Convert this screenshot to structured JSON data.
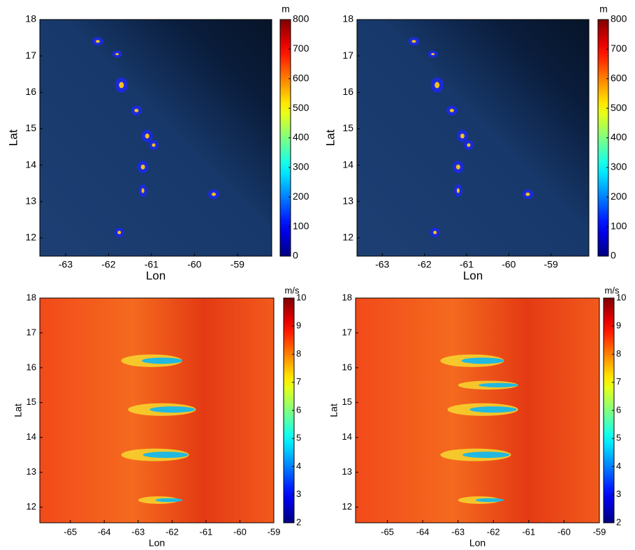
{
  "chart_data": [
    {
      "type": "heatmap",
      "colormap": "jet",
      "xlabel": "Lon",
      "ylabel": "Lat",
      "colorbar_label": "m",
      "xlim": [
        -63.6,
        -58.2
      ],
      "xticks": [
        -63,
        -62,
        -61,
        -60,
        -59
      ],
      "ylim": [
        11.5,
        18
      ],
      "yticks": [
        12,
        13,
        14,
        15,
        16,
        17,
        18
      ],
      "clim": [
        0,
        800
      ],
      "cticks": [
        0,
        100,
        200,
        300,
        400,
        500,
        600,
        700,
        800
      ]
    },
    {
      "type": "heatmap",
      "colormap": "jet",
      "xlabel": "Lon",
      "ylabel": "Lat",
      "colorbar_label": "m",
      "xlim": [
        -63.6,
        -58.1
      ],
      "xticks": [
        -63,
        -62,
        -61,
        -60,
        -59
      ],
      "ylim": [
        11.5,
        18
      ],
      "yticks": [
        12,
        13,
        14,
        15,
        16,
        17,
        18
      ],
      "clim": [
        0,
        800
      ],
      "cticks": [
        0,
        100,
        200,
        300,
        400,
        500,
        600,
        700,
        800
      ]
    },
    {
      "type": "heatmap",
      "colormap": "jet",
      "xlabel": "Lon",
      "ylabel": "Lat",
      "colorbar_label": "m/s",
      "xlim": [
        -65.9,
        -59
      ],
      "xticks": [
        -65,
        -64,
        -63,
        -62,
        -61,
        -60,
        -59
      ],
      "ylim": [
        11.55,
        18
      ],
      "yticks": [
        12,
        13,
        14,
        15,
        16,
        17,
        18
      ],
      "clim": [
        2,
        10
      ],
      "cticks": [
        2,
        3,
        4,
        5,
        6,
        7,
        8,
        9,
        10
      ]
    },
    {
      "type": "heatmap",
      "colormap": "jet",
      "xlabel": "Lon",
      "ylabel": "Lat",
      "colorbar_label": "m/s",
      "xlim": [
        -65.9,
        -59
      ],
      "xticks": [
        -65,
        -64,
        -63,
        -62,
        -61,
        -60,
        -59
      ],
      "ylim": [
        11.55,
        18
      ],
      "yticks": [
        12,
        13,
        14,
        15,
        16,
        17,
        18
      ],
      "clim": [
        2,
        10
      ],
      "cticks": [
        2,
        3,
        4,
        5,
        6,
        7,
        8,
        9,
        10
      ]
    }
  ]
}
